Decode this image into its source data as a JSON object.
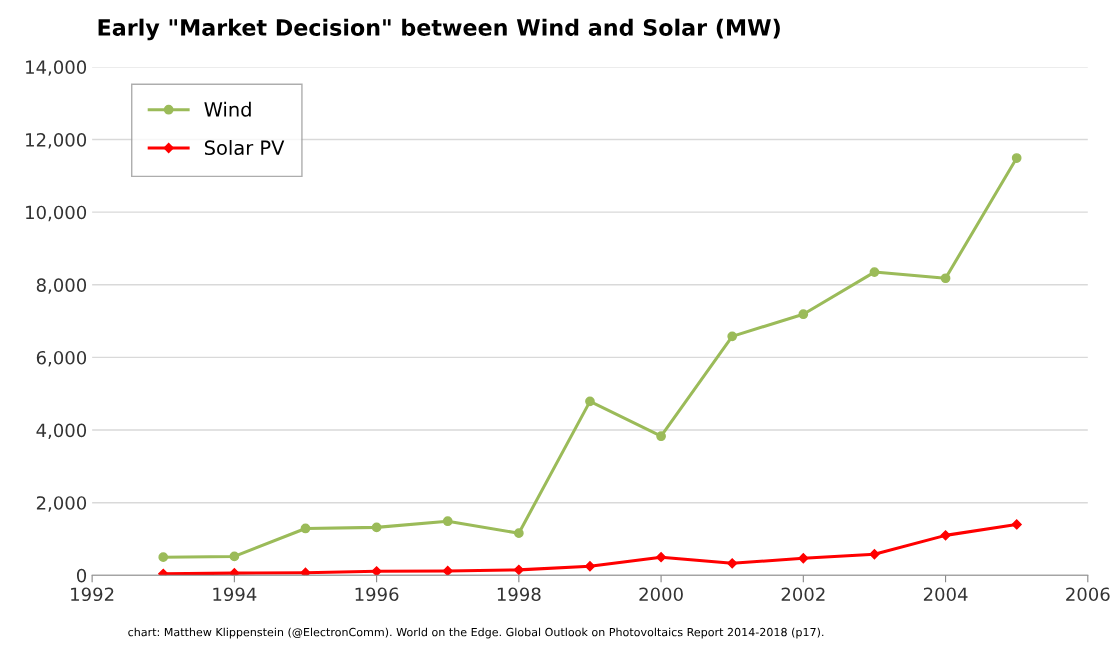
{
  "chart_data": {
    "type": "line",
    "title": "Early \"Market Decision\" between Wind and Solar (MW)",
    "x": [
      1993,
      1994,
      1995,
      1996,
      1997,
      1998,
      1999,
      2000,
      2001,
      2002,
      2003,
      2004,
      2005
    ],
    "series": [
      {
        "name": "Wind",
        "color": "#9bbb59",
        "marker": "circle",
        "values": [
          500,
          520,
          1290,
          1320,
          1490,
          1160,
          4790,
          3830,
          6580,
          7190,
          8350,
          8180,
          11490
        ]
      },
      {
        "name": "Solar PV",
        "color": "#ff0000",
        "marker": "diamond",
        "values": [
          40,
          60,
          70,
          110,
          120,
          150,
          250,
          500,
          330,
          470,
          580,
          1100,
          1400
        ]
      }
    ],
    "xlim": [
      1992,
      2006
    ],
    "xticks": [
      1992,
      1994,
      1996,
      1998,
      2000,
      2002,
      2004,
      2006
    ],
    "ylim": [
      0,
      14000
    ],
    "yticks": [
      {
        "value": 0,
        "label": "0"
      },
      {
        "value": 2000,
        "label": "2,000"
      },
      {
        "value": 4000,
        "label": "4,000"
      },
      {
        "value": 6000,
        "label": "6,000"
      },
      {
        "value": 8000,
        "label": "8,000"
      },
      {
        "value": 10000,
        "label": "10,000"
      },
      {
        "value": 12000,
        "label": "12,000"
      },
      {
        "value": 14000,
        "label": "14,000"
      }
    ],
    "grid": "y",
    "legend": "top left",
    "line_style": "solid",
    "annotations": [
      "chart: Matthew Klippenstein (@ElectronComm). World on the Edge. Global Outlook on Photovoltaics Report 2014-2018 (p17)."
    ]
  }
}
